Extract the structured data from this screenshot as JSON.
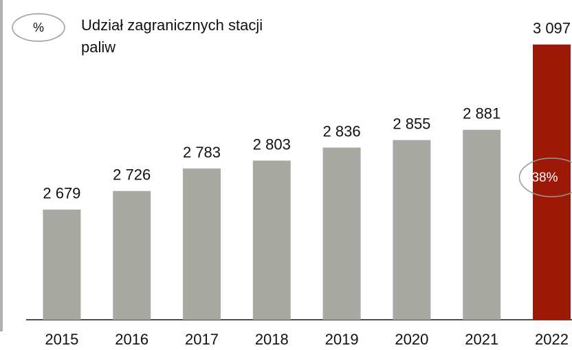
{
  "chart_data": {
    "type": "bar",
    "categories": [
      "2015",
      "2016",
      "2017",
      "2018",
      "2019",
      "2020",
      "2021",
      "2022"
    ],
    "values": [
      2679,
      2726,
      2783,
      2803,
      2836,
      2855,
      2881,
      3097
    ],
    "value_labels": [
      "2 679",
      "2 726",
      "2 783",
      "2 803",
      "2 836",
      "2 855",
      "2 881",
      "3 097"
    ],
    "colors": [
      "#a9a9a4",
      "#a9a9a4",
      "#a9a9a4",
      "#a9a9a4",
      "#a9a9a4",
      "#a9a9a4",
      "#a9a9a4",
      "#9c1907"
    ],
    "ylim": [
      2400,
      3100
    ],
    "legend": {
      "symbol": "%",
      "text": [
        "Udział zagranicznych stacji",
        "paliw"
      ]
    },
    "annotation": "38%"
  }
}
